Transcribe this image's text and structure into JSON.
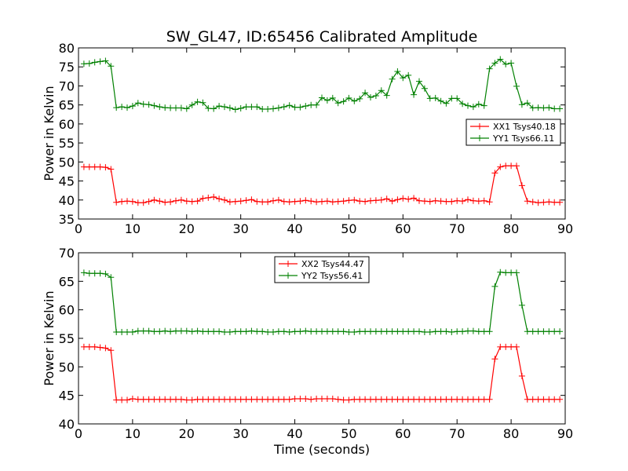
{
  "title": "SW_GL47, ID:65456 Calibrated Amplitude",
  "chart_data": [
    {
      "type": "line",
      "xlabel": "",
      "ylabel": "Power in Kelvin",
      "xlim": [
        0,
        90
      ],
      "ylim": [
        35,
        80
      ],
      "xticks": [
        0,
        10,
        20,
        30,
        40,
        50,
        60,
        70,
        80,
        90
      ],
      "yticks": [
        35,
        40,
        45,
        50,
        55,
        60,
        65,
        70,
        75,
        80
      ],
      "legend_position": "center-right",
      "series": [
        {
          "name": "XX1 Tsys40.18",
          "color": "#ff0000",
          "x": [
            1,
            2,
            3,
            4,
            5,
            6,
            7,
            8,
            9,
            10,
            11,
            12,
            13,
            14,
            15,
            16,
            17,
            18,
            19,
            20,
            21,
            22,
            23,
            24,
            25,
            26,
            27,
            28,
            29,
            30,
            31,
            32,
            33,
            34,
            35,
            36,
            37,
            38,
            39,
            40,
            41,
            42,
            43,
            44,
            45,
            46,
            47,
            48,
            49,
            50,
            51,
            52,
            53,
            54,
            55,
            56,
            57,
            58,
            59,
            60,
            61,
            62,
            63,
            64,
            65,
            66,
            67,
            68,
            69,
            70,
            71,
            72,
            73,
            74,
            75,
            76,
            77,
            78,
            79,
            80,
            81,
            82,
            83,
            84,
            85,
            86,
            87,
            88,
            89
          ],
          "y": [
            48.7,
            48.7,
            48.7,
            48.7,
            48.6,
            48.1,
            39.4,
            39.6,
            39.7,
            39.6,
            39.3,
            39.3,
            39.6,
            40.0,
            39.7,
            39.4,
            39.5,
            39.8,
            40.0,
            39.7,
            39.6,
            39.7,
            40.4,
            40.6,
            40.8,
            40.3,
            40.0,
            39.5,
            39.6,
            39.7,
            39.9,
            40.1,
            39.6,
            39.5,
            39.5,
            39.8,
            40.0,
            39.6,
            39.5,
            39.6,
            39.7,
            39.9,
            39.7,
            39.5,
            39.6,
            39.7,
            39.5,
            39.6,
            39.7,
            39.9,
            40.0,
            39.7,
            39.6,
            39.8,
            39.9,
            40.0,
            40.3,
            39.7,
            40.1,
            40.4,
            40.2,
            40.5,
            39.8,
            39.7,
            39.6,
            39.8,
            39.7,
            39.6,
            39.6,
            39.8,
            39.7,
            40.1,
            39.8,
            39.7,
            39.8,
            39.5,
            47.1,
            48.7,
            49.0,
            49.0,
            49.0,
            43.8,
            39.7,
            39.5,
            39.3,
            39.4,
            39.5,
            39.4,
            39.4
          ]
        },
        {
          "name": "YY1 Tsys66.11",
          "color": "#008000",
          "x": [
            1,
            2,
            3,
            4,
            5,
            6,
            7,
            8,
            9,
            10,
            11,
            12,
            13,
            14,
            15,
            16,
            17,
            18,
            19,
            20,
            21,
            22,
            23,
            24,
            25,
            26,
            27,
            28,
            29,
            30,
            31,
            32,
            33,
            34,
            35,
            36,
            37,
            38,
            39,
            40,
            41,
            42,
            43,
            44,
            45,
            46,
            47,
            48,
            49,
            50,
            51,
            52,
            53,
            54,
            55,
            56,
            57,
            58,
            59,
            60,
            61,
            62,
            63,
            64,
            65,
            66,
            67,
            68,
            69,
            70,
            71,
            72,
            73,
            74,
            75,
            76,
            77,
            78,
            79,
            80,
            81,
            82,
            83,
            84,
            85,
            86,
            87,
            88,
            89
          ],
          "y": [
            75.8,
            75.9,
            76.2,
            76.4,
            76.6,
            75.2,
            64.3,
            64.5,
            64.3,
            64.7,
            65.5,
            65.2,
            65.1,
            64.8,
            64.5,
            64.3,
            64.2,
            64.2,
            64.2,
            64.0,
            65.0,
            65.8,
            65.6,
            64.1,
            64.0,
            64.7,
            64.5,
            64.2,
            63.8,
            64.1,
            64.5,
            64.5,
            64.5,
            63.9,
            63.9,
            64.0,
            64.2,
            64.5,
            64.9,
            64.4,
            64.4,
            64.7,
            65.0,
            65.0,
            66.9,
            66.2,
            66.8,
            65.5,
            65.9,
            66.8,
            66.0,
            66.6,
            68.2,
            67.0,
            67.4,
            68.8,
            67.5,
            71.8,
            73.8,
            72.1,
            72.8,
            67.7,
            71.2,
            69.3,
            66.7,
            66.8,
            66.0,
            65.4,
            66.7,
            66.7,
            65.3,
            64.8,
            64.5,
            65.2,
            64.8,
            74.5,
            76.0,
            77.0,
            75.7,
            76.0,
            69.9,
            65.1,
            65.5,
            64.2,
            64.3,
            64.2,
            64.3,
            64.0,
            64.0
          ]
        }
      ]
    },
    {
      "type": "line",
      "xlabel": "Time (seconds)",
      "ylabel": "Power in Kelvin",
      "xlim": [
        0,
        90
      ],
      "ylim": [
        40,
        70
      ],
      "xticks": [
        0,
        10,
        20,
        30,
        40,
        50,
        60,
        70,
        80,
        90
      ],
      "yticks": [
        40,
        45,
        50,
        55,
        60,
        65,
        70
      ],
      "legend_position": "upper-center",
      "series": [
        {
          "name": "XX2 Tsys44.47",
          "color": "#ff0000",
          "x": [
            1,
            2,
            3,
            4,
            5,
            6,
            7,
            8,
            9,
            10,
            11,
            12,
            13,
            14,
            15,
            16,
            17,
            18,
            19,
            20,
            21,
            22,
            23,
            24,
            25,
            26,
            27,
            28,
            29,
            30,
            31,
            32,
            33,
            34,
            35,
            36,
            37,
            38,
            39,
            40,
            41,
            42,
            43,
            44,
            45,
            46,
            47,
            48,
            49,
            50,
            51,
            52,
            53,
            54,
            55,
            56,
            57,
            58,
            59,
            60,
            61,
            62,
            63,
            64,
            65,
            66,
            67,
            68,
            69,
            70,
            71,
            72,
            73,
            74,
            75,
            76,
            77,
            78,
            79,
            80,
            81,
            82,
            83,
            84,
            85,
            86,
            87,
            88,
            89
          ],
          "y": [
            53.5,
            53.5,
            53.5,
            53.4,
            53.3,
            52.9,
            44.2,
            44.2,
            44.2,
            44.4,
            44.3,
            44.3,
            44.3,
            44.3,
            44.3,
            44.3,
            44.3,
            44.3,
            44.3,
            44.2,
            44.2,
            44.3,
            44.3,
            44.3,
            44.3,
            44.3,
            44.3,
            44.3,
            44.3,
            44.3,
            44.3,
            44.3,
            44.3,
            44.3,
            44.3,
            44.3,
            44.3,
            44.3,
            44.3,
            44.4,
            44.4,
            44.4,
            44.3,
            44.4,
            44.4,
            44.4,
            44.4,
            44.3,
            44.2,
            44.2,
            44.3,
            44.3,
            44.3,
            44.3,
            44.3,
            44.3,
            44.3,
            44.3,
            44.3,
            44.3,
            44.3,
            44.3,
            44.3,
            44.3,
            44.3,
            44.3,
            44.3,
            44.3,
            44.3,
            44.3,
            44.3,
            44.3,
            44.3,
            44.3,
            44.3,
            44.3,
            51.4,
            53.5,
            53.5,
            53.5,
            53.5,
            48.4,
            44.3,
            44.3,
            44.3,
            44.3,
            44.3,
            44.3,
            44.3
          ]
        },
        {
          "name": "YY2 Tsys56.41",
          "color": "#008000",
          "x": [
            1,
            2,
            3,
            4,
            5,
            6,
            7,
            8,
            9,
            10,
            11,
            12,
            13,
            14,
            15,
            16,
            17,
            18,
            19,
            20,
            21,
            22,
            23,
            24,
            25,
            26,
            27,
            28,
            29,
            30,
            31,
            32,
            33,
            34,
            35,
            36,
            37,
            38,
            39,
            40,
            41,
            42,
            43,
            44,
            45,
            46,
            47,
            48,
            49,
            50,
            51,
            52,
            53,
            54,
            55,
            56,
            57,
            58,
            59,
            60,
            61,
            62,
            63,
            64,
            65,
            66,
            67,
            68,
            69,
            70,
            71,
            72,
            73,
            74,
            75,
            76,
            77,
            78,
            79,
            80,
            81,
            82,
            83,
            84,
            85,
            86,
            87,
            88,
            89
          ],
          "y": [
            66.5,
            66.4,
            66.4,
            66.4,
            66.3,
            65.7,
            56.1,
            56.1,
            56.1,
            56.1,
            56.3,
            56.3,
            56.3,
            56.2,
            56.2,
            56.3,
            56.2,
            56.3,
            56.3,
            56.3,
            56.2,
            56.3,
            56.2,
            56.2,
            56.2,
            56.2,
            56.1,
            56.1,
            56.2,
            56.2,
            56.2,
            56.3,
            56.2,
            56.2,
            56.1,
            56.1,
            56.2,
            56.2,
            56.1,
            56.2,
            56.2,
            56.3,
            56.2,
            56.2,
            56.2,
            56.2,
            56.2,
            56.2,
            56.2,
            56.1,
            56.1,
            56.2,
            56.2,
            56.2,
            56.2,
            56.2,
            56.2,
            56.2,
            56.2,
            56.2,
            56.2,
            56.2,
            56.2,
            56.1,
            56.1,
            56.2,
            56.2,
            56.2,
            56.1,
            56.2,
            56.2,
            56.3,
            56.3,
            56.2,
            56.2,
            56.2,
            64.1,
            66.6,
            66.5,
            66.5,
            66.5,
            60.8,
            56.2,
            56.2,
            56.2,
            56.2,
            56.2,
            56.2,
            56.2
          ]
        }
      ]
    }
  ]
}
